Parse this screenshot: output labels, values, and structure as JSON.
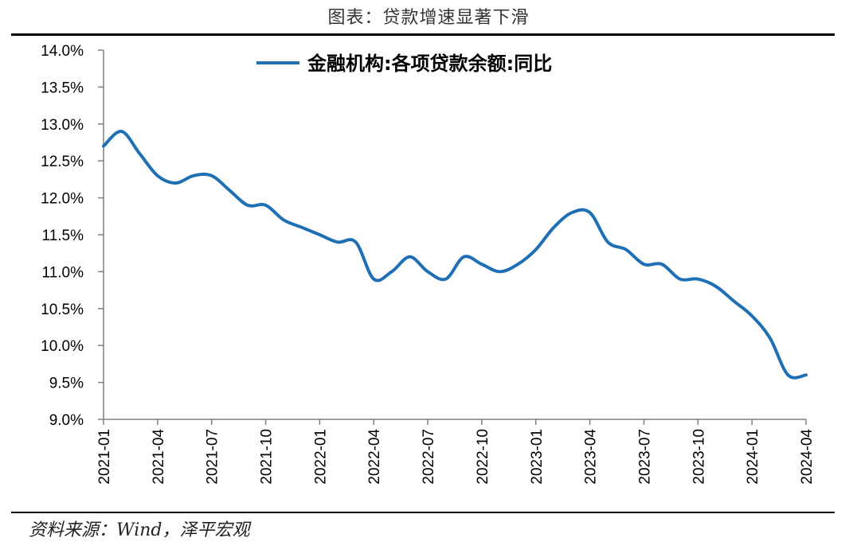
{
  "header": {
    "title": "图表：贷款增速显著下滑"
  },
  "footer": {
    "source": "资料来源：Wind，泽平宏观"
  },
  "chart_data": {
    "type": "line",
    "title": "",
    "xlabel": "",
    "ylabel": "",
    "ylim": [
      9.0,
      14.0
    ],
    "y_ticks": [
      "9.0%",
      "9.5%",
      "10.0%",
      "10.5%",
      "11.0%",
      "11.5%",
      "12.0%",
      "12.5%",
      "13.0%",
      "13.5%",
      "14.0%"
    ],
    "x_ticks": [
      "2021-01",
      "2021-04",
      "2021-07",
      "2021-10",
      "2022-01",
      "2022-04",
      "2022-07",
      "2022-10",
      "2023-01",
      "2023-04",
      "2023-07",
      "2023-10",
      "2024-01",
      "2024-04"
    ],
    "legend_position": "top-center",
    "grid": false,
    "x": [
      "2021-01",
      "2021-02",
      "2021-03",
      "2021-04",
      "2021-05",
      "2021-06",
      "2021-07",
      "2021-08",
      "2021-09",
      "2021-10",
      "2021-11",
      "2021-12",
      "2022-01",
      "2022-02",
      "2022-03",
      "2022-04",
      "2022-05",
      "2022-06",
      "2022-07",
      "2022-08",
      "2022-09",
      "2022-10",
      "2022-11",
      "2022-12",
      "2023-01",
      "2023-02",
      "2023-03",
      "2023-04",
      "2023-05",
      "2023-06",
      "2023-07",
      "2023-08",
      "2023-09",
      "2023-10",
      "2023-11",
      "2023-12",
      "2024-01",
      "2024-02",
      "2024-03",
      "2024-04"
    ],
    "series": [
      {
        "name": "金融机构:各项贷款余额:同比",
        "color": "#1f6fb5",
        "values": [
          12.7,
          12.9,
          12.6,
          12.3,
          12.2,
          12.3,
          12.3,
          12.1,
          11.9,
          11.9,
          11.7,
          11.6,
          11.5,
          11.4,
          11.4,
          10.9,
          11.0,
          11.2,
          11.0,
          10.9,
          11.2,
          11.1,
          11.0,
          11.1,
          11.3,
          11.6,
          11.8,
          11.8,
          11.4,
          11.3,
          11.1,
          11.1,
          10.9,
          10.9,
          10.8,
          10.6,
          10.4,
          10.1,
          9.6,
          9.6
        ]
      }
    ]
  }
}
